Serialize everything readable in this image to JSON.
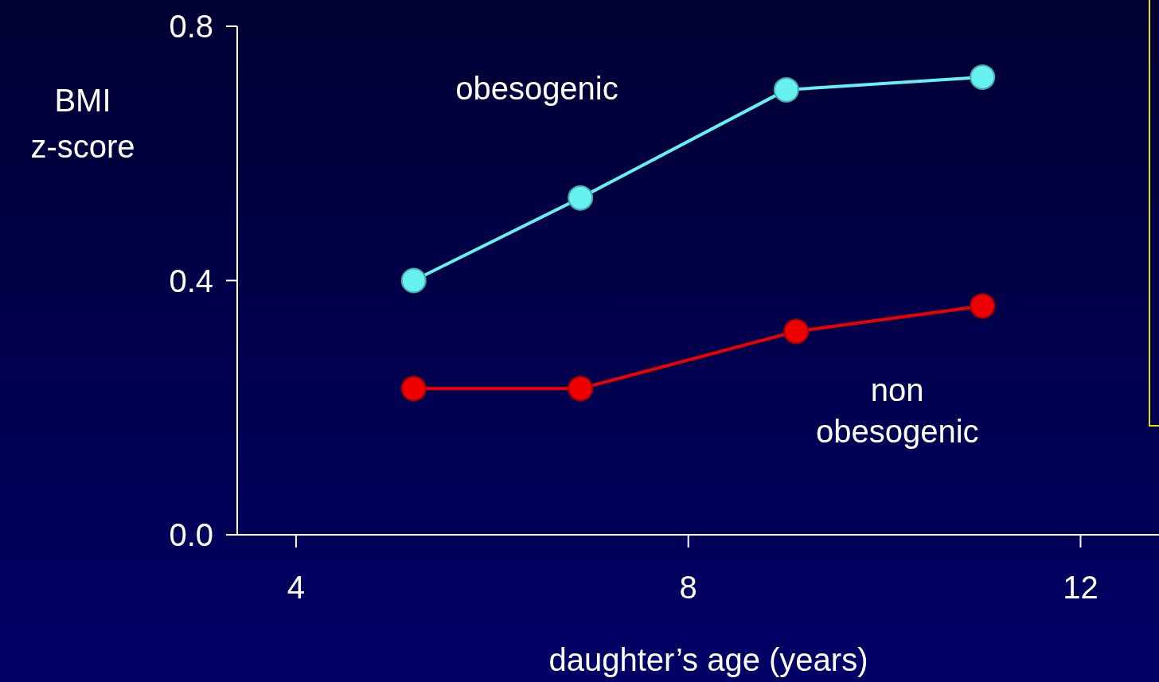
{
  "chart_data": {
    "type": "line",
    "xlabel": "daughter’s age (years)",
    "ylabel": "BMI z-score",
    "xlim": [
      3.4,
      12.8
    ],
    "xticks": [
      4,
      8,
      12
    ],
    "ylim": [
      0,
      0.8
    ],
    "yticks": [
      {
        "value": 0,
        "label": "0.0"
      },
      0.4,
      0.8
    ],
    "marker": "circle",
    "line_style": "solid",
    "grid": false,
    "series": [
      {
        "name": "obesogenic",
        "color": "#66f0f0",
        "x": [
          5.2,
          6.9,
          9.0,
          11.0
        ],
        "values": [
          0.4,
          0.53,
          0.7,
          0.72
        ]
      },
      {
        "name": "non obesogenic",
        "color": "#ee0000",
        "x": [
          5.2,
          6.9,
          9.1,
          11.0
        ],
        "values": [
          0.23,
          0.23,
          0.32,
          0.36
        ]
      }
    ]
  }
}
